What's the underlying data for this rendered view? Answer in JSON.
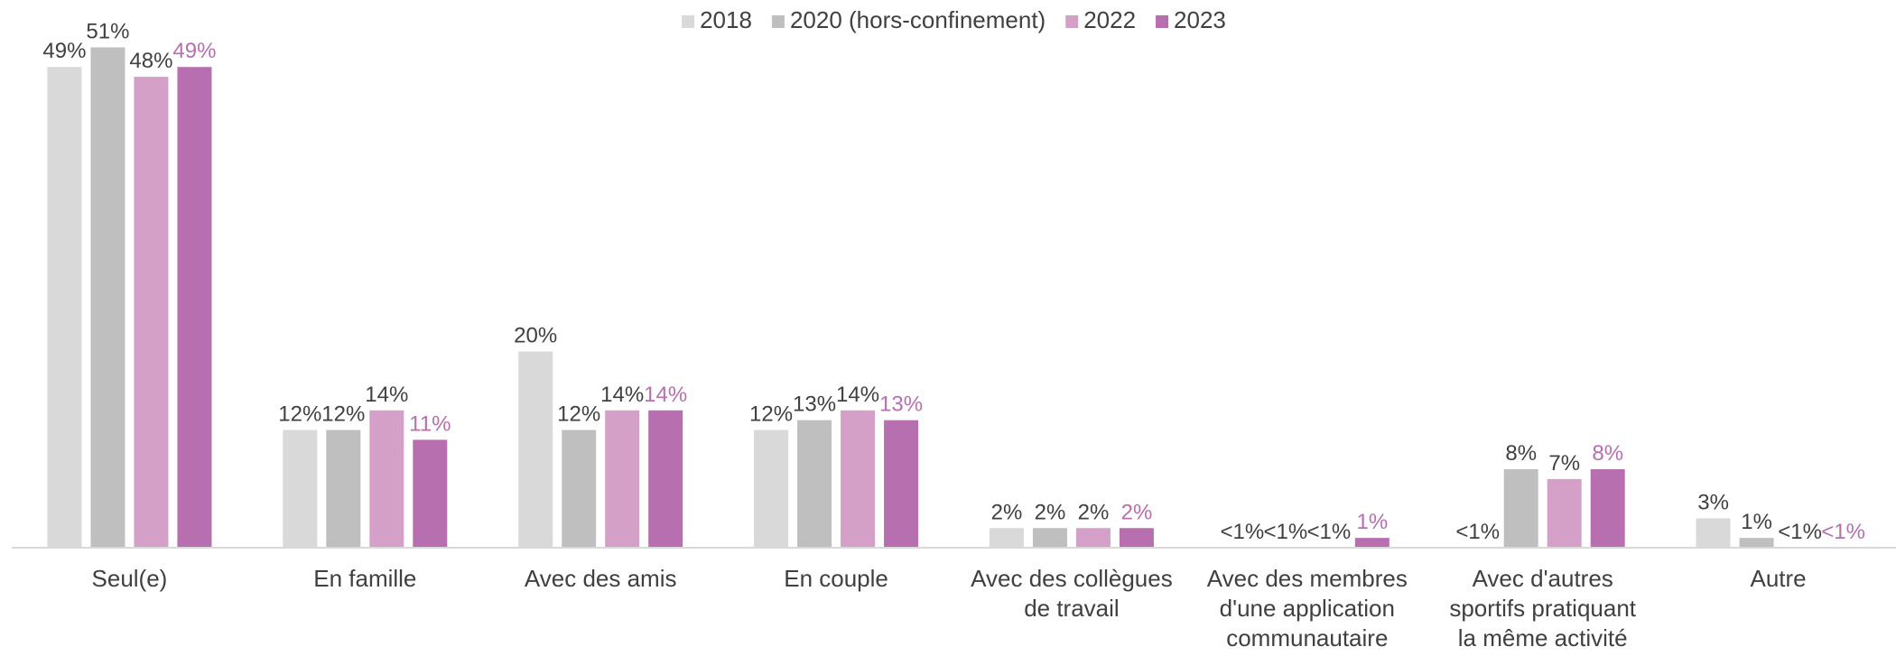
{
  "chart_data": {
    "type": "bar",
    "categories": [
      [
        "Seul(e)"
      ],
      [
        "En famille"
      ],
      [
        "Avec des amis"
      ],
      [
        "En couple"
      ],
      [
        "Avec des collègues",
        "de travail"
      ],
      [
        "Avec des membres",
        "d'une application",
        "communautaire"
      ],
      [
        "Avec d'autres",
        "sportifs pratiquant",
        "la même activité"
      ],
      [
        "Autre"
      ]
    ],
    "series": [
      {
        "name": "2018",
        "color": "#d9d9d9",
        "label_color": "#404040",
        "values": [
          49,
          12,
          20,
          12,
          2,
          0,
          0,
          3
        ],
        "value_labels": [
          "49%",
          "12%",
          "20%",
          "12%",
          "2%",
          "<1%",
          "<1%",
          "3%"
        ]
      },
      {
        "name": "2020 (hors-confinement)",
        "color": "#bfbfbf",
        "label_color": "#404040",
        "values": [
          51,
          12,
          12,
          13,
          2,
          0,
          8,
          1
        ],
        "value_labels": [
          "51%",
          "12%",
          "12%",
          "13%",
          "2%",
          "<1%",
          "8%",
          "1%"
        ]
      },
      {
        "name": "2022",
        "color": "#d4a0c8",
        "label_color": "#404040",
        "values": [
          48,
          14,
          14,
          14,
          2,
          0,
          7,
          0
        ],
        "value_labels": [
          "48%",
          "14%",
          "14%",
          "14%",
          "2%",
          "<1%",
          "7%",
          "<1%"
        ]
      },
      {
        "name": "2023",
        "color": "#b76fb0",
        "label_color": "#b76fb0",
        "values": [
          49,
          11,
          14,
          13,
          2,
          1,
          8,
          0
        ],
        "value_labels": [
          "49%",
          "11%",
          "14%",
          "13%",
          "2%",
          "1%",
          "8%",
          "<1%"
        ]
      }
    ],
    "ylim": [
      0,
      55
    ],
    "legend": "top"
  }
}
